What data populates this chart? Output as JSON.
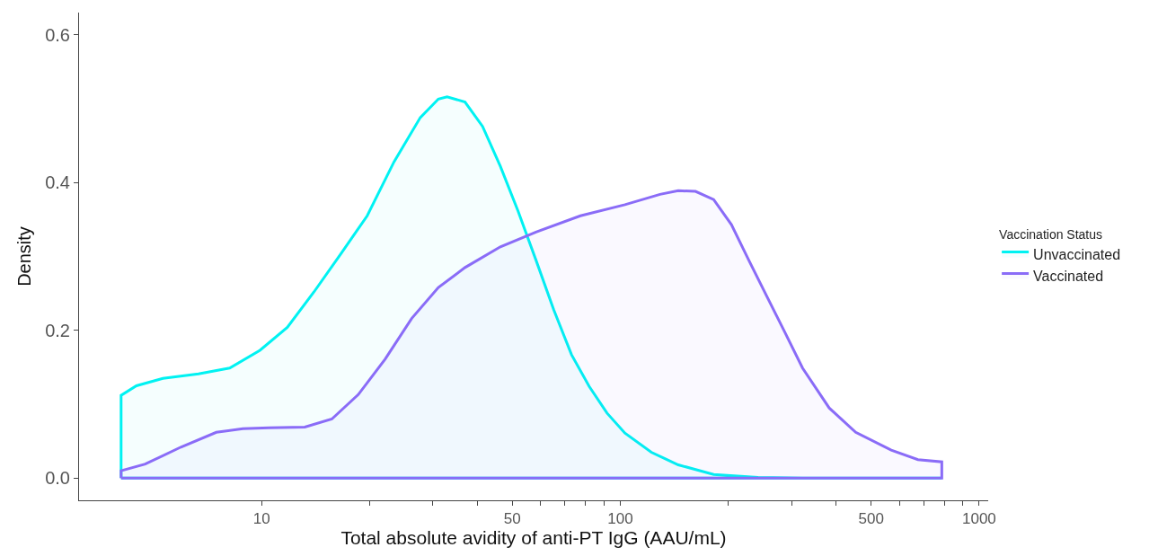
{
  "chart_data": {
    "type": "area",
    "xlabel": "Total absolute avidity of anti-PT IgG (AAU/mL)",
    "ylabel": "Density",
    "legend_title": "Vaccination Status",
    "legend": "right",
    "log": "x",
    "xlim": [
      3.1,
      1060
    ],
    "ylim": [
      -0.03,
      0.63
    ],
    "xticks": [
      10,
      {
        "value": 20,
        "label": null
      },
      {
        "value": 30,
        "label": null
      },
      {
        "value": 40,
        "label": null
      },
      50,
      {
        "value": 60,
        "label": null
      },
      {
        "value": 70,
        "label": null
      },
      {
        "value": 80,
        "label": null
      },
      {
        "value": 90,
        "label": null
      },
      100,
      {
        "value": 200,
        "label": null
      },
      {
        "value": 300,
        "label": null
      },
      {
        "value": 400,
        "label": null
      },
      500,
      {
        "value": 600,
        "label": null
      },
      {
        "value": 700,
        "label": null
      },
      {
        "value": 800,
        "label": null
      },
      {
        "value": 900,
        "label": null
      },
      1000
    ],
    "yticks": [
      {
        "value": 0,
        "label": "0.0"
      },
      {
        "value": 0.2,
        "label": "0.2"
      },
      {
        "value": 0.4,
        "label": "0.4"
      },
      {
        "value": 0.6,
        "label": "0.6"
      }
    ],
    "series": [
      {
        "name": "Unvaccinated",
        "color": "#00f2f2",
        "x": [
          4.06,
          4.48,
          5.31,
          6.67,
          8.15,
          9.9,
          11.8,
          14.0,
          16.6,
          19.7,
          23.4,
          27.7,
          31.1,
          32.9,
          36.9,
          41.3,
          46.3,
          51.9,
          58.2,
          65.2,
          73.1,
          81.9,
          91.8,
          103,
          122,
          145,
          182,
          242,
          322,
          787
        ],
        "values": [
          0.112,
          0.125,
          0.135,
          0.141,
          0.149,
          0.173,
          0.204,
          0.252,
          0.303,
          0.355,
          0.428,
          0.488,
          0.513,
          0.516,
          0.509,
          0.476,
          0.422,
          0.361,
          0.295,
          0.228,
          0.167,
          0.124,
          0.088,
          0.061,
          0.035,
          0.018,
          0.005,
          0.001,
          0,
          0
        ]
      },
      {
        "name": "Vaccinated",
        "color": "#8a6cf7",
        "x": [
          4.06,
          4.74,
          5.96,
          7.48,
          8.87,
          10.5,
          13.2,
          15.7,
          18.6,
          22.1,
          26.2,
          31.1,
          36.9,
          46.3,
          58.2,
          77.4,
          103,
          129,
          145,
          162,
          182,
          204,
          228,
          256,
          287,
          322,
          382,
          453,
          569,
          675,
          787
        ],
        "values": [
          0.01,
          0.019,
          0.042,
          0.062,
          0.067,
          0.068,
          0.069,
          0.08,
          0.113,
          0.161,
          0.216,
          0.258,
          0.285,
          0.313,
          0.333,
          0.355,
          0.37,
          0.384,
          0.389,
          0.388,
          0.377,
          0.343,
          0.295,
          0.246,
          0.198,
          0.149,
          0.095,
          0.062,
          0.038,
          0.025,
          0.022
        ]
      }
    ]
  }
}
